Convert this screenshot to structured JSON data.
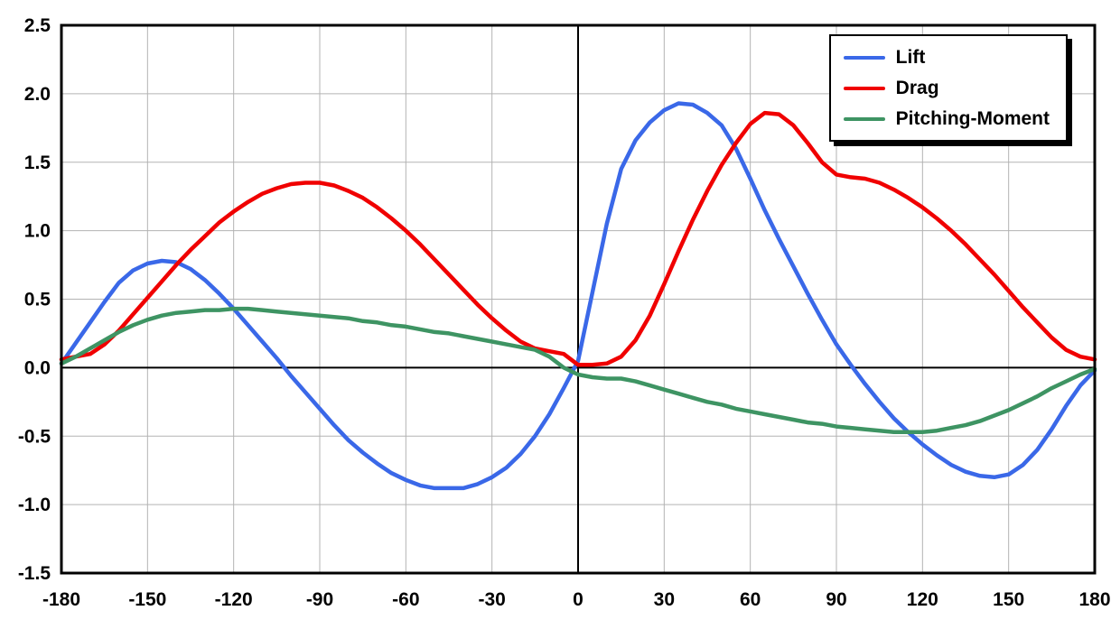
{
  "chart_data": {
    "type": "line",
    "xlim": [
      -180,
      180
    ],
    "ylim": [
      -1.5,
      2.5
    ],
    "grid": true,
    "grid_color": "#b3b3b3",
    "axis_color": "#000000",
    "plot_border_color": "#000000",
    "legend_position": "top-right",
    "x_tick_values": [
      -180,
      -150,
      -120,
      -90,
      -60,
      -30,
      0,
      30,
      60,
      90,
      120,
      150,
      180
    ],
    "x_tick_labels": [
      "-180",
      "-150",
      "-120",
      "-90",
      "-60",
      "-30",
      "0",
      "30",
      "60",
      "90",
      "120",
      "150",
      "180"
    ],
    "y_tick_values": [
      2.5,
      2.0,
      1.5,
      1.0,
      0.5,
      0.0,
      -0.5,
      -1.0,
      -1.5
    ],
    "y_tick_labels": [
      "2.5",
      "2.0",
      "1.5",
      "1.0",
      "0.5",
      "0.0",
      "-0.5",
      "-1.0",
      "-1.5"
    ],
    "x": [
      -180,
      -175,
      -170,
      -165,
      -160,
      -155,
      -150,
      -145,
      -140,
      -135,
      -130,
      -125,
      -120,
      -115,
      -110,
      -105,
      -100,
      -95,
      -90,
      -85,
      -80,
      -75,
      -70,
      -65,
      -60,
      -55,
      -50,
      -45,
      -40,
      -35,
      -30,
      -25,
      -20,
      -15,
      -10,
      -5,
      0,
      5,
      10,
      15,
      20,
      25,
      30,
      35,
      40,
      45,
      50,
      55,
      60,
      65,
      70,
      75,
      80,
      85,
      90,
      95,
      100,
      105,
      110,
      115,
      120,
      125,
      130,
      135,
      140,
      145,
      150,
      155,
      160,
      165,
      170,
      175,
      180
    ],
    "series": [
      {
        "name": "Lift",
        "color": "#3A68E8",
        "values": [
          0.03,
          0.18,
          0.33,
          0.48,
          0.62,
          0.71,
          0.76,
          0.78,
          0.77,
          0.72,
          0.64,
          0.54,
          0.43,
          0.31,
          0.19,
          0.07,
          -0.06,
          -0.18,
          -0.3,
          -0.42,
          -0.53,
          -0.62,
          -0.7,
          -0.77,
          -0.82,
          -0.86,
          -0.88,
          -0.88,
          -0.88,
          -0.85,
          -0.8,
          -0.73,
          -0.63,
          -0.5,
          -0.34,
          -0.15,
          0.05,
          0.55,
          1.05,
          1.45,
          1.66,
          1.79,
          1.88,
          1.93,
          1.92,
          1.86,
          1.77,
          1.6,
          1.38,
          1.15,
          0.94,
          0.74,
          0.54,
          0.35,
          0.17,
          0.02,
          -0.12,
          -0.25,
          -0.37,
          -0.47,
          -0.56,
          -0.64,
          -0.71,
          -0.76,
          -0.79,
          -0.8,
          -0.78,
          -0.71,
          -0.6,
          -0.45,
          -0.28,
          -0.13,
          -0.02
        ]
      },
      {
        "name": "Drag",
        "color": "#F00000",
        "values": [
          0.06,
          0.08,
          0.1,
          0.17,
          0.27,
          0.39,
          0.51,
          0.63,
          0.75,
          0.86,
          0.96,
          1.06,
          1.14,
          1.21,
          1.27,
          1.31,
          1.34,
          1.35,
          1.35,
          1.33,
          1.29,
          1.24,
          1.17,
          1.09,
          1.0,
          0.9,
          0.79,
          0.68,
          0.57,
          0.46,
          0.36,
          0.27,
          0.19,
          0.14,
          0.12,
          0.1,
          0.02,
          0.02,
          0.03,
          0.08,
          0.2,
          0.38,
          0.61,
          0.85,
          1.08,
          1.29,
          1.48,
          1.64,
          1.78,
          1.86,
          1.85,
          1.77,
          1.64,
          1.5,
          1.41,
          1.39,
          1.38,
          1.35,
          1.3,
          1.24,
          1.17,
          1.09,
          1.0,
          0.9,
          0.79,
          0.68,
          0.56,
          0.44,
          0.33,
          0.22,
          0.13,
          0.08,
          0.06
        ]
      },
      {
        "name": "Pitching-Moment",
        "color": "#3E9463",
        "values": [
          0.03,
          0.08,
          0.14,
          0.2,
          0.26,
          0.31,
          0.35,
          0.38,
          0.4,
          0.41,
          0.42,
          0.42,
          0.43,
          0.43,
          0.42,
          0.41,
          0.4,
          0.39,
          0.38,
          0.37,
          0.36,
          0.34,
          0.33,
          0.31,
          0.3,
          0.28,
          0.26,
          0.25,
          0.23,
          0.21,
          0.19,
          0.17,
          0.15,
          0.13,
          0.08,
          0.0,
          -0.05,
          -0.07,
          -0.08,
          -0.08,
          -0.1,
          -0.13,
          -0.16,
          -0.19,
          -0.22,
          -0.25,
          -0.27,
          -0.3,
          -0.32,
          -0.34,
          -0.36,
          -0.38,
          -0.4,
          -0.41,
          -0.43,
          -0.44,
          -0.45,
          -0.46,
          -0.47,
          -0.47,
          -0.47,
          -0.46,
          -0.44,
          -0.42,
          -0.39,
          -0.35,
          -0.31,
          -0.26,
          -0.21,
          -0.15,
          -0.1,
          -0.05,
          -0.01
        ]
      }
    ]
  }
}
